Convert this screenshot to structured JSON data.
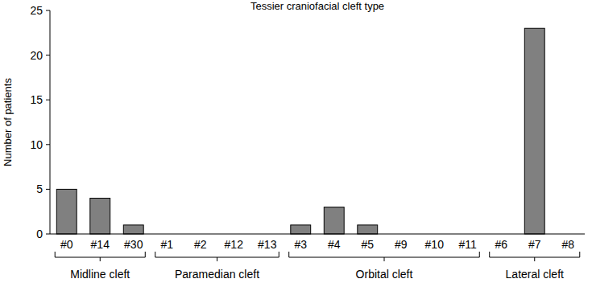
{
  "chart_data": {
    "type": "bar",
    "title": "Tessier craniofacial cleft type",
    "y_label": "Number of patients",
    "categories": [
      "#0",
      "#14",
      "#30",
      "#1",
      "#2",
      "#12",
      "#13",
      "#3",
      "#4",
      "#5",
      "#9",
      "#10",
      "#11",
      "#6",
      "#7",
      "#8"
    ],
    "values": [
      5,
      4,
      1,
      0,
      0,
      0,
      0,
      1,
      3,
      1,
      0,
      0,
      0,
      0,
      23,
      0
    ],
    "color": "#808080",
    "ylim": [
      0,
      25
    ],
    "yticks": [
      0,
      5,
      10,
      15,
      20,
      25
    ],
    "grid": false,
    "groups": [
      {
        "label": "Midline cleft",
        "members": [
          "#0",
          "#14",
          "#30"
        ]
      },
      {
        "label": "Paramedian cleft",
        "members": [
          "#1",
          "#2",
          "#12",
          "#13"
        ]
      },
      {
        "label": "Orbital cleft",
        "members": [
          "#3",
          "#4",
          "#5",
          "#9",
          "#10",
          "#11"
        ]
      },
      {
        "label": "Lateral cleft",
        "members": [
          "#6",
          "#7",
          "#8"
        ]
      }
    ]
  }
}
